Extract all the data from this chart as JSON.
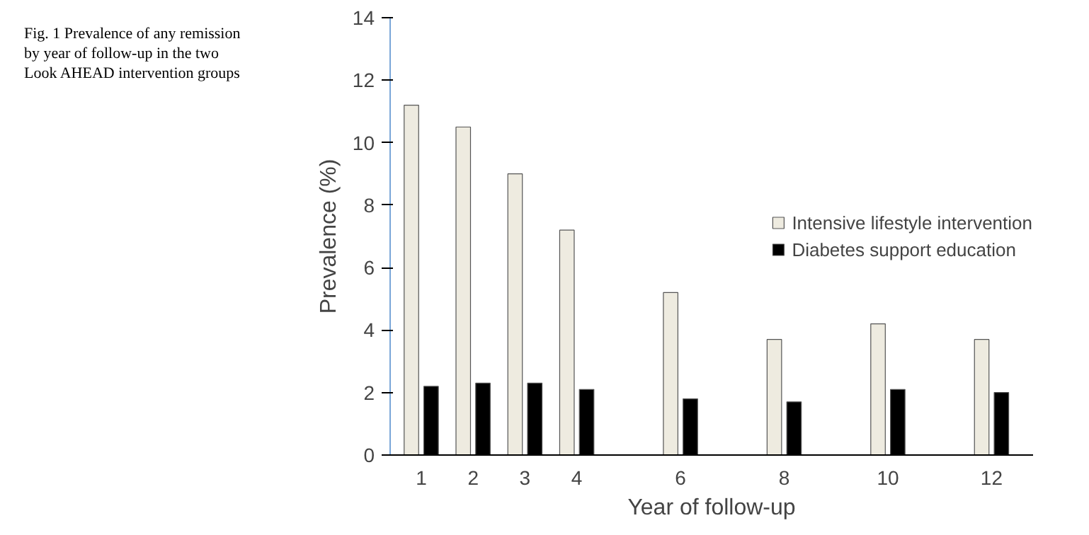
{
  "chart_data": {
    "type": "bar",
    "title": "Fig. 1 Prevalence of any remission by year of follow-up in the two Look AHEAD intervention groups",
    "xlabel": "Year of follow-up",
    "ylabel": "Prevalence (%)",
    "x": [
      1,
      2,
      3,
      4,
      6,
      8,
      10,
      12
    ],
    "series": [
      {
        "name": "Intensive lifestyle intervention",
        "color": "#eeebe0",
        "values": [
          11.2,
          10.5,
          9.0,
          7.2,
          5.2,
          3.7,
          4.2,
          3.7
        ]
      },
      {
        "name": "Diabetes support education",
        "color": "#000000",
        "values": [
          2.2,
          2.3,
          2.3,
          2.1,
          1.8,
          1.7,
          2.1,
          2.0
        ]
      }
    ],
    "xlim": [
      0.4,
      12.8
    ],
    "xticks": [
      1,
      2,
      3,
      4,
      6,
      8,
      10,
      12
    ],
    "ylim": [
      0,
      14
    ],
    "yticks": [
      0,
      2,
      4,
      6,
      8,
      10,
      12,
      14
    ],
    "grid": false,
    "legend": "right"
  }
}
